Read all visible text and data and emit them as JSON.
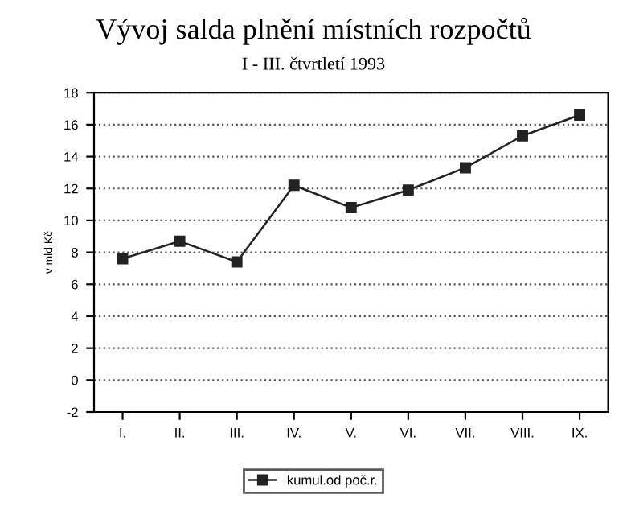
{
  "chart_data": {
    "type": "line",
    "title": "Vývoj salda plnění místních rozpočtů",
    "subtitle": "I - III. čtvrtletí 1993",
    "ylabel": "v mld Kč",
    "categories": [
      "I.",
      "II.",
      "III.",
      "IV.",
      "V.",
      "VI.",
      "VII.",
      "VIII.",
      "IX."
    ],
    "series": [
      {
        "name": "kumul.od poč.r.",
        "color": "#222222",
        "values": [
          7.6,
          8.7,
          7.4,
          12.2,
          10.8,
          11.9,
          13.3,
          15.3,
          16.6
        ]
      }
    ],
    "ylim": [
      -2,
      18
    ],
    "yticks": [
      -2,
      0,
      2,
      4,
      6,
      8,
      10,
      12,
      14,
      16,
      18
    ],
    "grid": "y",
    "legend": "bottom",
    "marker": "square",
    "line_style": "solid"
  }
}
